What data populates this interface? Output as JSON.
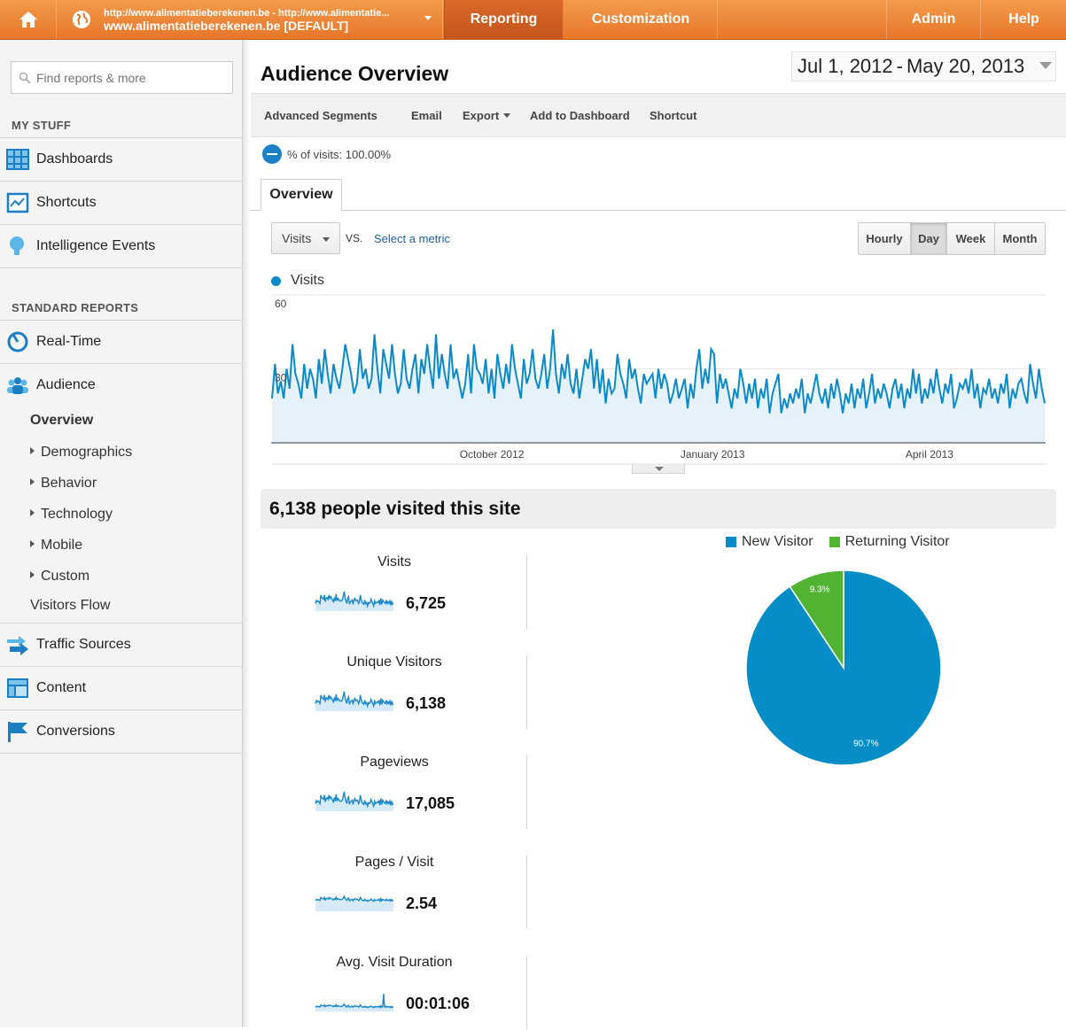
{
  "topbar": {
    "account_url": "http://www.alimentatieberekenen.be - http://www.alimentatie...",
    "account_name": "www.alimentatieberekenen.be [DEFAULT]",
    "reporting": "Reporting",
    "customization": "Customization",
    "admin": "Admin",
    "help": "Help"
  },
  "sidebar": {
    "search_placeholder": "Find reports & more",
    "my_stuff": "MY STUFF",
    "dashboards": "Dashboards",
    "shortcuts": "Shortcuts",
    "intelligence": "Intelligence Events",
    "standard_reports": "STANDARD REPORTS",
    "realtime": "Real-Time",
    "audience": "Audience",
    "overview": "Overview",
    "demographics": "Demographics",
    "behavior": "Behavior",
    "technology": "Technology",
    "mobile": "Mobile",
    "custom": "Custom",
    "visitors_flow": "Visitors Flow",
    "traffic_sources": "Traffic Sources",
    "content": "Content",
    "conversions": "Conversions"
  },
  "header": {
    "title": "Audience Overview",
    "date_start": "Jul 1, 2012",
    "date_sep": "-",
    "date_end": "May 20, 2013"
  },
  "toolbar": {
    "advanced_segments": "Advanced Segments",
    "email": "Email",
    "export": "Export",
    "add_dashboard": "Add to Dashboard",
    "shortcut": "Shortcut"
  },
  "segment": {
    "text": "% of visits: 100.00%"
  },
  "tabs": {
    "overview": "Overview"
  },
  "controls": {
    "metric": "Visits",
    "vs": "VS.",
    "select_metric": "Select a metric",
    "hourly": "Hourly",
    "day": "Day",
    "week": "Week",
    "month": "Month"
  },
  "colors": {
    "accent": "#e7762a",
    "series": "#0a8ac8",
    "new_visitor": "#058dc7",
    "returning_visitor": "#50b432"
  },
  "chart_data": [
    {
      "type": "area",
      "series_name": "Visits",
      "x_ticks": [
        "October 2012",
        "January 2013",
        "April 2013"
      ],
      "y_ticks": [
        60,
        30
      ],
      "ylim": [
        0,
        60
      ],
      "grid": true,
      "values": [
        18,
        32,
        20,
        25,
        18,
        30,
        22,
        40,
        28,
        24,
        18,
        32,
        22,
        30,
        26,
        18,
        34,
        24,
        38,
        28,
        20,
        32,
        26,
        22,
        30,
        40,
        34,
        28,
        20,
        24,
        38,
        26,
        30,
        22,
        26,
        44,
        30,
        20,
        38,
        32,
        26,
        40,
        28,
        20,
        24,
        38,
        26,
        22,
        30,
        36,
        20,
        34,
        28,
        40,
        30,
        22,
        44,
        26,
        36,
        28,
        22,
        40,
        26,
        30,
        24,
        18,
        24,
        36,
        20,
        40,
        30,
        28,
        24,
        34,
        20,
        30,
        18,
        36,
        28,
        22,
        32,
        24,
        40,
        30,
        24,
        18,
        34,
        24,
        28,
        38,
        26,
        22,
        28,
        36,
        22,
        30,
        46,
        28,
        20,
        32,
        26,
        36,
        24,
        20,
        30,
        18,
        26,
        34,
        30,
        38,
        22,
        34,
        20,
        30,
        16,
        26,
        20,
        22,
        36,
        28,
        24,
        18,
        34,
        26,
        30,
        22,
        16,
        28,
        24,
        26,
        28,
        18,
        30,
        22,
        28,
        24,
        16,
        20,
        26,
        18,
        22,
        26,
        14,
        24,
        18,
        30,
        38,
        22,
        30,
        24,
        38,
        36,
        16,
        28,
        22,
        26,
        20,
        14,
        22,
        18,
        30,
        24,
        16,
        24,
        18,
        26,
        14,
        22,
        18,
        26,
        12,
        20,
        24,
        28,
        12,
        18,
        14,
        20,
        16,
        22,
        18,
        26,
        12,
        20,
        16,
        22,
        28,
        20,
        16,
        22,
        14,
        24,
        18,
        26,
        20,
        12,
        20,
        16,
        24,
        14,
        22,
        18,
        26,
        14,
        20,
        28,
        16,
        22,
        18,
        24,
        20,
        14,
        22,
        26,
        18,
        24,
        14,
        22,
        18,
        30,
        20,
        28,
        16,
        22,
        18,
        26,
        20,
        30,
        22,
        16,
        24,
        20,
        28,
        14,
        18,
        24,
        22,
        26,
        20,
        30,
        18,
        24,
        14,
        22,
        20,
        26,
        18,
        22,
        16,
        24,
        20,
        28,
        14,
        22,
        18,
        24,
        26,
        20,
        16,
        32,
        24,
        18,
        30,
        22,
        16
      ]
    },
    {
      "type": "pie",
      "legend_position": "top",
      "slices": [
        {
          "name": "New Visitor",
          "value": 90.7,
          "label": "90.7%"
        },
        {
          "name": "Returning Visitor",
          "value": 9.3,
          "label": "9.3%"
        }
      ]
    }
  ],
  "summary": {
    "title": "6,138 people visited this site",
    "metrics": [
      {
        "label": "Visits",
        "value": "6,725"
      },
      {
        "label": "Unique Visitors",
        "value": "6,138"
      },
      {
        "label": "Pageviews",
        "value": "17,085"
      },
      {
        "label": "Pages / Visit",
        "value": "2.54"
      },
      {
        "label": "Avg. Visit Duration",
        "value": "00:01:06"
      }
    ]
  }
}
